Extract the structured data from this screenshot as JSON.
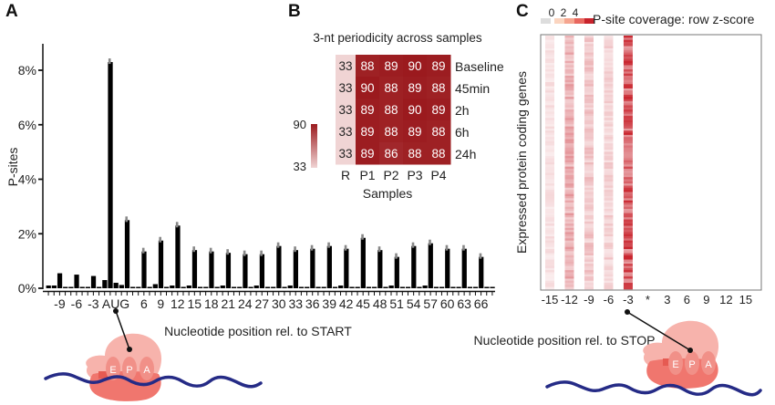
{
  "panels": {
    "A": "A",
    "B": "B",
    "C": "C"
  },
  "chart_data": [
    {
      "id": "panelA",
      "type": "bar",
      "title": "",
      "xlabel": "Nucleotide position rel. to START",
      "ylabel": "P-sites",
      "ylim": [
        0,
        8.8
      ],
      "yticks": [
        0,
        2,
        4,
        6,
        8
      ],
      "ytick_labels": [
        "0%",
        "2%",
        "4%",
        "6%",
        "8%"
      ],
      "xlim": [
        -11,
        68
      ],
      "xticks": [
        -9,
        -6,
        -3,
        1,
        6,
        9,
        12,
        15,
        18,
        21,
        24,
        27,
        30,
        33,
        36,
        39,
        42,
        45,
        48,
        51,
        54,
        57,
        60,
        63,
        66
      ],
      "xtick_labels": [
        "-9",
        "-6",
        "-3",
        "AUG",
        "6",
        "9",
        "12",
        "15",
        "18",
        "21",
        "24",
        "27",
        "30",
        "33",
        "36",
        "39",
        "42",
        "45",
        "48",
        "51",
        "54",
        "57",
        "60",
        "63",
        "66"
      ],
      "units": "percent",
      "x": [
        -11,
        -10,
        -9,
        -8,
        -7,
        -6,
        -5,
        -4,
        -3,
        -2,
        -1,
        0,
        1,
        2,
        3,
        4,
        5,
        6,
        7,
        8,
        9,
        10,
        11,
        12,
        13,
        14,
        15,
        16,
        17,
        18,
        19,
        20,
        21,
        22,
        23,
        24,
        25,
        26,
        27,
        28,
        29,
        30,
        31,
        32,
        33,
        34,
        35,
        36,
        37,
        38,
        39,
        40,
        41,
        42,
        43,
        44,
        45,
        46,
        47,
        48,
        49,
        50,
        51,
        52,
        53,
        54,
        55,
        56,
        57,
        58,
        59,
        60,
        61,
        62,
        63,
        64,
        65,
        66,
        67,
        68
      ],
      "values": [
        0.1,
        0.1,
        0.55,
        0.05,
        0.05,
        0.5,
        0.05,
        0.05,
        0.45,
        0.05,
        0.3,
        8.3,
        0.2,
        0.12,
        2.5,
        0.05,
        0.05,
        1.35,
        0.05,
        0.15,
        1.75,
        0.05,
        0.1,
        2.3,
        0.05,
        0.1,
        1.4,
        0.05,
        0.05,
        1.35,
        0.05,
        0.1,
        1.3,
        0.05,
        0.05,
        1.25,
        0.05,
        0.1,
        1.25,
        0.05,
        0.05,
        1.55,
        0.05,
        0.1,
        1.4,
        0.05,
        0.05,
        1.45,
        0.05,
        0.05,
        1.55,
        0.05,
        0.1,
        1.45,
        0.05,
        0.05,
        1.85,
        0.05,
        0.05,
        1.4,
        0.05,
        0.1,
        1.15,
        0.05,
        0.05,
        1.55,
        0.05,
        0.1,
        1.65,
        0.05,
        0.05,
        1.45,
        0.05,
        0.05,
        1.45,
        0.05,
        0.05,
        1.15,
        0.05,
        0.05
      ],
      "annotation": "ribosome E P A schematic pointing to AUG"
    },
    {
      "id": "panelB",
      "type": "heatmap",
      "title": "3-nt periodicity across samples",
      "xlabel": "Samples",
      "ylabel": "",
      "columns": [
        "R",
        "P1",
        "P2",
        "P3",
        "P4"
      ],
      "rows": [
        "Baseline",
        "45min",
        "2h",
        "6h",
        "24h"
      ],
      "values": [
        [
          33,
          88,
          89,
          90,
          89
        ],
        [
          33,
          90,
          88,
          89,
          88
        ],
        [
          33,
          89,
          88,
          90,
          89
        ],
        [
          33,
          89,
          88,
          89,
          88
        ],
        [
          33,
          89,
          86,
          88,
          88
        ]
      ],
      "colorbar": {
        "min": 33,
        "max": 90,
        "min_label": "33",
        "max_label": "90",
        "low_color": "#f0d4d4",
        "high_color": "#9b1a1e"
      }
    },
    {
      "id": "panelC",
      "type": "heatmap",
      "title": "P-site coverage: row z-score",
      "xlabel": "Nucleotide position rel. to STOP",
      "ylabel": "Expressed protein coding genes",
      "xtick_labels": [
        "-15",
        "-12",
        "-9",
        "-6",
        "-3",
        "*",
        "3",
        "6",
        "9",
        "12",
        "15"
      ],
      "xticks": [
        -15,
        -12,
        -9,
        -6,
        -3,
        0,
        3,
        6,
        9,
        12,
        15
      ],
      "xlim": [
        -16,
        17
      ],
      "legend": {
        "labels": [
          "0",
          "2",
          "4"
        ],
        "colors": [
          "#dddddd",
          "#fbd5c0",
          "#f5a58f",
          "#e8675f",
          "#c8232c"
        ]
      },
      "column_intensity": [
        {
          "position": -15,
          "mean_z": 0.6
        },
        {
          "position": -12,
          "mean_z": 1.6
        },
        {
          "position": -9,
          "mean_z": 1.1
        },
        {
          "position": -6,
          "mean_z": 0.9
        },
        {
          "position": -3,
          "mean_z": 3.2
        },
        {
          "position": 0,
          "mean_z": 0.05
        },
        {
          "position": 3,
          "mean_z": 0.05
        }
      ],
      "annotation": "ribosome E P A schematic pointing to -3"
    }
  ]
}
